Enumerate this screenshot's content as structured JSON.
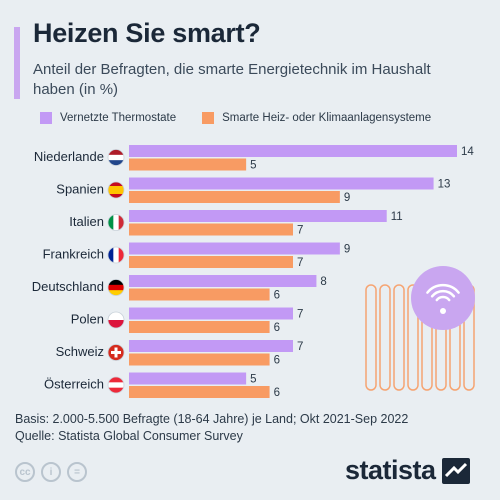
{
  "title": "Heizen Sie smart?",
  "subtitle": "Anteil der Befragten, die smarte Energietechnik im Haushalt haben (in %)",
  "colors": {
    "accent": "#c9a6f0",
    "series1": "#c299f5",
    "series2": "#f89b63"
  },
  "footer": {
    "basis": "Basis: 2.000-5.500 Befragte (18-64 Jahre) je Land; Okt 2021-Sep 2022",
    "source": "Quelle: Statista Global Consumer Survey"
  },
  "cc_icons": [
    "cc-icon",
    "attribution-icon",
    "equals-icon"
  ],
  "brand": "statista",
  "chart_data": {
    "type": "bar",
    "orientation": "horizontal",
    "categories": [
      "Niederlande",
      "Spanien",
      "Italien",
      "Frankreich",
      "Deutschland",
      "Polen",
      "Schweiz",
      "Österreich"
    ],
    "flags": [
      "nl-flag-icon",
      "es-flag-icon",
      "it-flag-icon",
      "fr-flag-icon",
      "de-flag-icon",
      "pl-flag-icon",
      "ch-flag-icon",
      "at-flag-icon"
    ],
    "series": [
      {
        "name": "Vernetzte Thermostate",
        "values": [
          14,
          13,
          11,
          9,
          8,
          7,
          7,
          5
        ]
      },
      {
        "name": "Smarte Heiz- oder Klimaanlagensysteme",
        "values": [
          5,
          9,
          7,
          7,
          6,
          6,
          6,
          6
        ]
      }
    ],
    "xlim": [
      0,
      14
    ],
    "legend": "top",
    "grid": false
  }
}
